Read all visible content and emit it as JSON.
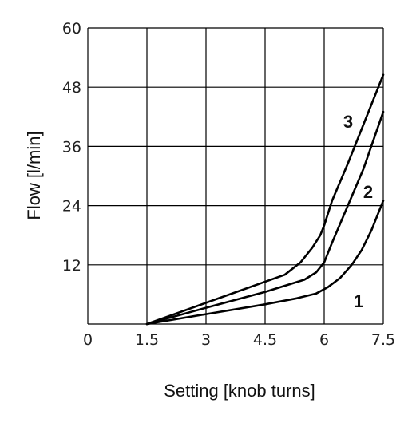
{
  "chart_data": {
    "type": "line",
    "xlabel": "Setting [knob turns]",
    "ylabel": "Flow [l/min]",
    "xlim": [
      0,
      7.5
    ],
    "ylim": [
      0,
      60
    ],
    "xticks": [
      "0",
      "1.5",
      "3",
      "4.5",
      "6",
      "7.5"
    ],
    "yticks": [
      "60",
      "48",
      "36",
      "24",
      "12"
    ],
    "xtick_values": [
      0,
      1.5,
      3,
      4.5,
      6,
      7.5
    ],
    "ytick_values": [
      60,
      48,
      36,
      24,
      12
    ],
    "grid": true,
    "legend": "inline",
    "series": [
      {
        "name": "1",
        "x": [
          1.5,
          3.0,
          4.5,
          5.3,
          5.8,
          6.1,
          6.4,
          6.7,
          6.95,
          7.2,
          7.5
        ],
        "y": [
          0,
          2.0,
          4.0,
          5.2,
          6.2,
          7.5,
          9.3,
          12.0,
          15.0,
          19.0,
          25.0
        ]
      },
      {
        "name": "2",
        "x": [
          1.5,
          3.0,
          4.5,
          5.5,
          5.8,
          6.0,
          6.2,
          6.6,
          7.0,
          7.5
        ],
        "y": [
          0,
          3.3,
          6.5,
          9.0,
          10.5,
          12.5,
          16.5,
          24.0,
          31.5,
          43.0
        ]
      },
      {
        "name": "3",
        "x": [
          1.5,
          3.0,
          5.0,
          5.4,
          5.7,
          5.9,
          6.0,
          6.2,
          6.6,
          7.0,
          7.5
        ],
        "y": [
          0,
          4.3,
          10.0,
          12.5,
          15.5,
          18.0,
          20.0,
          25.0,
          32.5,
          40.5,
          50.5
        ]
      }
    ]
  }
}
